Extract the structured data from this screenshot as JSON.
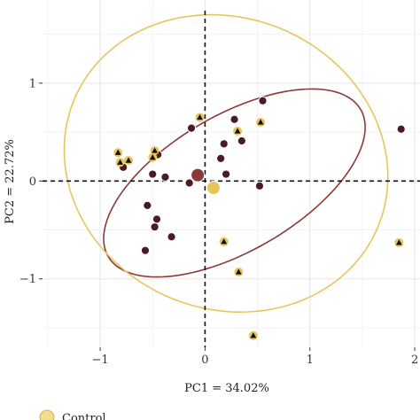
{
  "chart_data": {
    "type": "scatter",
    "title": "",
    "xlabel": "PC1 = 34.02%",
    "ylabel": "PC2 = 22.72%",
    "xlim": [
      -1.55,
      2.05
    ],
    "ylim": [
      -1.7,
      1.85
    ],
    "x_ticks": [
      -1,
      0,
      1,
      2
    ],
    "y_ticks": [
      -1,
      0,
      1
    ],
    "x_tick_labels": [
      "−1",
      "0",
      "1",
      "2"
    ],
    "y_tick_labels": [
      "−1",
      "0",
      "1"
    ],
    "grid": true,
    "reference_lines": {
      "x": 0,
      "y": 0,
      "style": "dashed"
    },
    "legend": {
      "placement": "bottom-left",
      "entries": [
        "Control"
      ]
    },
    "colors": {
      "group_a": "#8b3a3a",
      "group_b": "#e8c55a",
      "point_fill_circle": "#4a1c22",
      "point_fill_triangle": "#111111",
      "point_outline_triangle": "#e8c55a"
    },
    "series": [
      {
        "name": "",
        "marker": "circle",
        "color": "#8b3a3a",
        "points": [
          {
            "x": 0.55,
            "y": 0.82
          },
          {
            "x": 0.28,
            "y": 0.63
          },
          {
            "x": 0.35,
            "y": 0.41
          },
          {
            "x": -0.13,
            "y": 0.54
          },
          {
            "x": 0.18,
            "y": 0.38
          },
          {
            "x": 0.15,
            "y": 0.23
          },
          {
            "x": -0.45,
            "y": 0.27
          },
          {
            "x": -0.78,
            "y": 0.14
          },
          {
            "x": -0.5,
            "y": 0.07
          },
          {
            "x": -0.38,
            "y": 0.04
          },
          {
            "x": 0.2,
            "y": 0.07
          },
          {
            "x": -0.15,
            "y": -0.02
          },
          {
            "x": 0.52,
            "y": -0.05
          },
          {
            "x": -0.55,
            "y": -0.25
          },
          {
            "x": -0.46,
            "y": -0.39
          },
          {
            "x": -0.48,
            "y": -0.47
          },
          {
            "x": -0.32,
            "y": -0.57
          },
          {
            "x": -0.57,
            "y": -0.71
          },
          {
            "x": 1.87,
            "y": 0.53
          }
        ]
      },
      {
        "name": "",
        "marker": "triangle",
        "color": "#e8c55a",
        "points": [
          {
            "x": -0.05,
            "y": 0.65
          },
          {
            "x": 0.53,
            "y": 0.6
          },
          {
            "x": 0.31,
            "y": 0.51
          },
          {
            "x": -0.83,
            "y": 0.29
          },
          {
            "x": -0.48,
            "y": 0.31
          },
          {
            "x": -0.81,
            "y": 0.19
          },
          {
            "x": -0.73,
            "y": 0.21
          },
          {
            "x": -0.5,
            "y": 0.24
          },
          {
            "x": 0.18,
            "y": -0.62
          },
          {
            "x": 0.32,
            "y": -0.93
          },
          {
            "x": 1.85,
            "y": -0.63
          },
          {
            "x": 0.46,
            "y": -1.58
          }
        ]
      }
    ],
    "centroids": [
      {
        "x": -0.07,
        "y": 0.06,
        "color": "#8b3a3a"
      },
      {
        "x": 0.08,
        "y": -0.07,
        "color": "#e8c55a"
      }
    ],
    "ellipses": [
      {
        "cx": 0.28,
        "cy": -0.02,
        "rx": 1.42,
        "ry": 0.68,
        "angle_deg": 33,
        "color": "#8b3a3a"
      },
      {
        "cx": 0.2,
        "cy": 0.18,
        "rx": 1.6,
        "ry": 1.46,
        "angle_deg": -40,
        "color": "#e8c55a"
      }
    ]
  }
}
